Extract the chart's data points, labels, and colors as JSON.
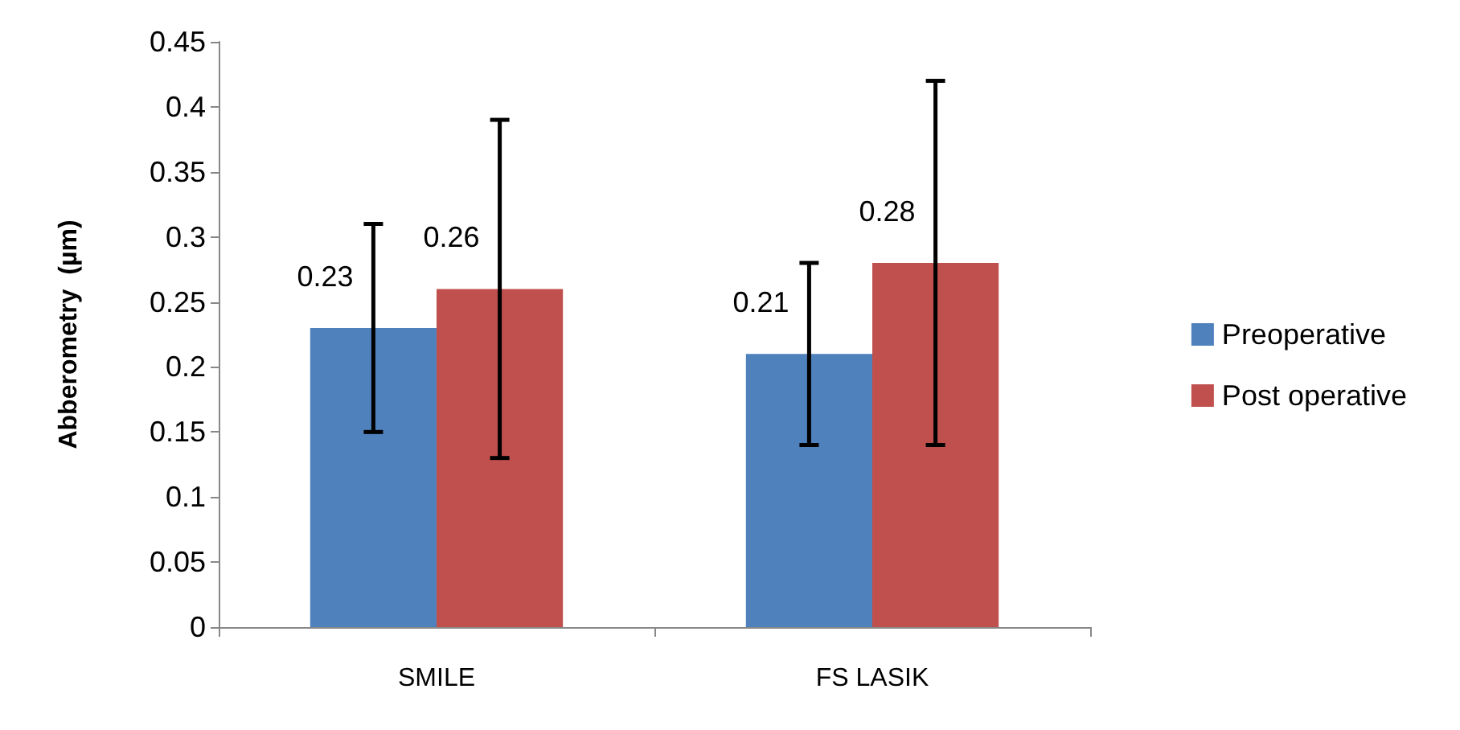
{
  "chart_data": {
    "type": "bar",
    "ylabel": "Abberometry  (µm)",
    "categories": [
      "SMILE",
      "FS LASIK"
    ],
    "series": [
      {
        "name": "Preoperative",
        "color": "#4f81bd",
        "values": [
          0.23,
          0.21
        ],
        "errors": [
          0.08,
          0.07
        ]
      },
      {
        "name": "Post operative",
        "color": "#c0504d",
        "values": [
          0.26,
          0.28
        ],
        "errors": [
          0.13,
          0.14
        ]
      }
    ],
    "ylim": [
      0,
      0.45
    ],
    "yticks": [
      0,
      0.05,
      0.1,
      0.15,
      0.2,
      0.25,
      0.3,
      0.35,
      0.4,
      0.45
    ],
    "data_labels": true,
    "legend": "right",
    "grid": false
  }
}
